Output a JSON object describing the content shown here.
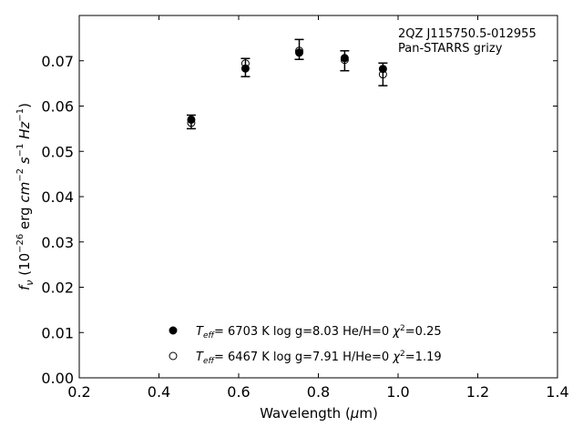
{
  "chart_data": {
    "type": "scatter",
    "title": "",
    "annotation": [
      "2QZ J115750.5-012955",
      "Pan-STARRS grizy"
    ],
    "xlabel": {
      "pre": "Wavelength (",
      "sym": "μ",
      "post": "m)"
    },
    "ylabel": "f_ν (10^−26 erg cm^−2 s^−1 Hz^−1)",
    "xlim": [
      0.2,
      1.4
    ],
    "ylim": [
      0.0,
      0.08
    ],
    "xticks": [
      "0.2",
      "0.4",
      "0.6",
      "0.8",
      "1.0",
      "1.2",
      "1.4"
    ],
    "yticks": [
      "0.00",
      "0.01",
      "0.02",
      "0.03",
      "0.04",
      "0.05",
      "0.06",
      "0.07"
    ],
    "grid": false,
    "observed": {
      "x": [
        0.481,
        0.617,
        0.752,
        0.866,
        0.962
      ],
      "y": [
        0.0565,
        0.0685,
        0.0725,
        0.07,
        0.067
      ],
      "yerr": [
        0.0015,
        0.002,
        0.0022,
        0.0022,
        0.0025
      ]
    },
    "series": [
      {
        "marker": "filled-circle",
        "legend": {
          "teff": "6703 K",
          "logg": "log g=8.03",
          "comp": "He/H=0",
          "chi": "=0.25"
        },
        "x": [
          0.481,
          0.617,
          0.752,
          0.866,
          0.962
        ],
        "y": [
          0.057,
          0.0683,
          0.0718,
          0.0706,
          0.0682
        ]
      },
      {
        "marker": "open-circle",
        "legend": {
          "teff": "6467 K",
          "logg": "log g=7.91",
          "comp": "H/He=0",
          "chi": "=1.19"
        },
        "x": [
          0.481,
          0.617,
          0.752,
          0.866,
          0.962
        ],
        "y": [
          0.0563,
          0.0694,
          0.0722,
          0.0702,
          0.067
        ]
      }
    ]
  }
}
